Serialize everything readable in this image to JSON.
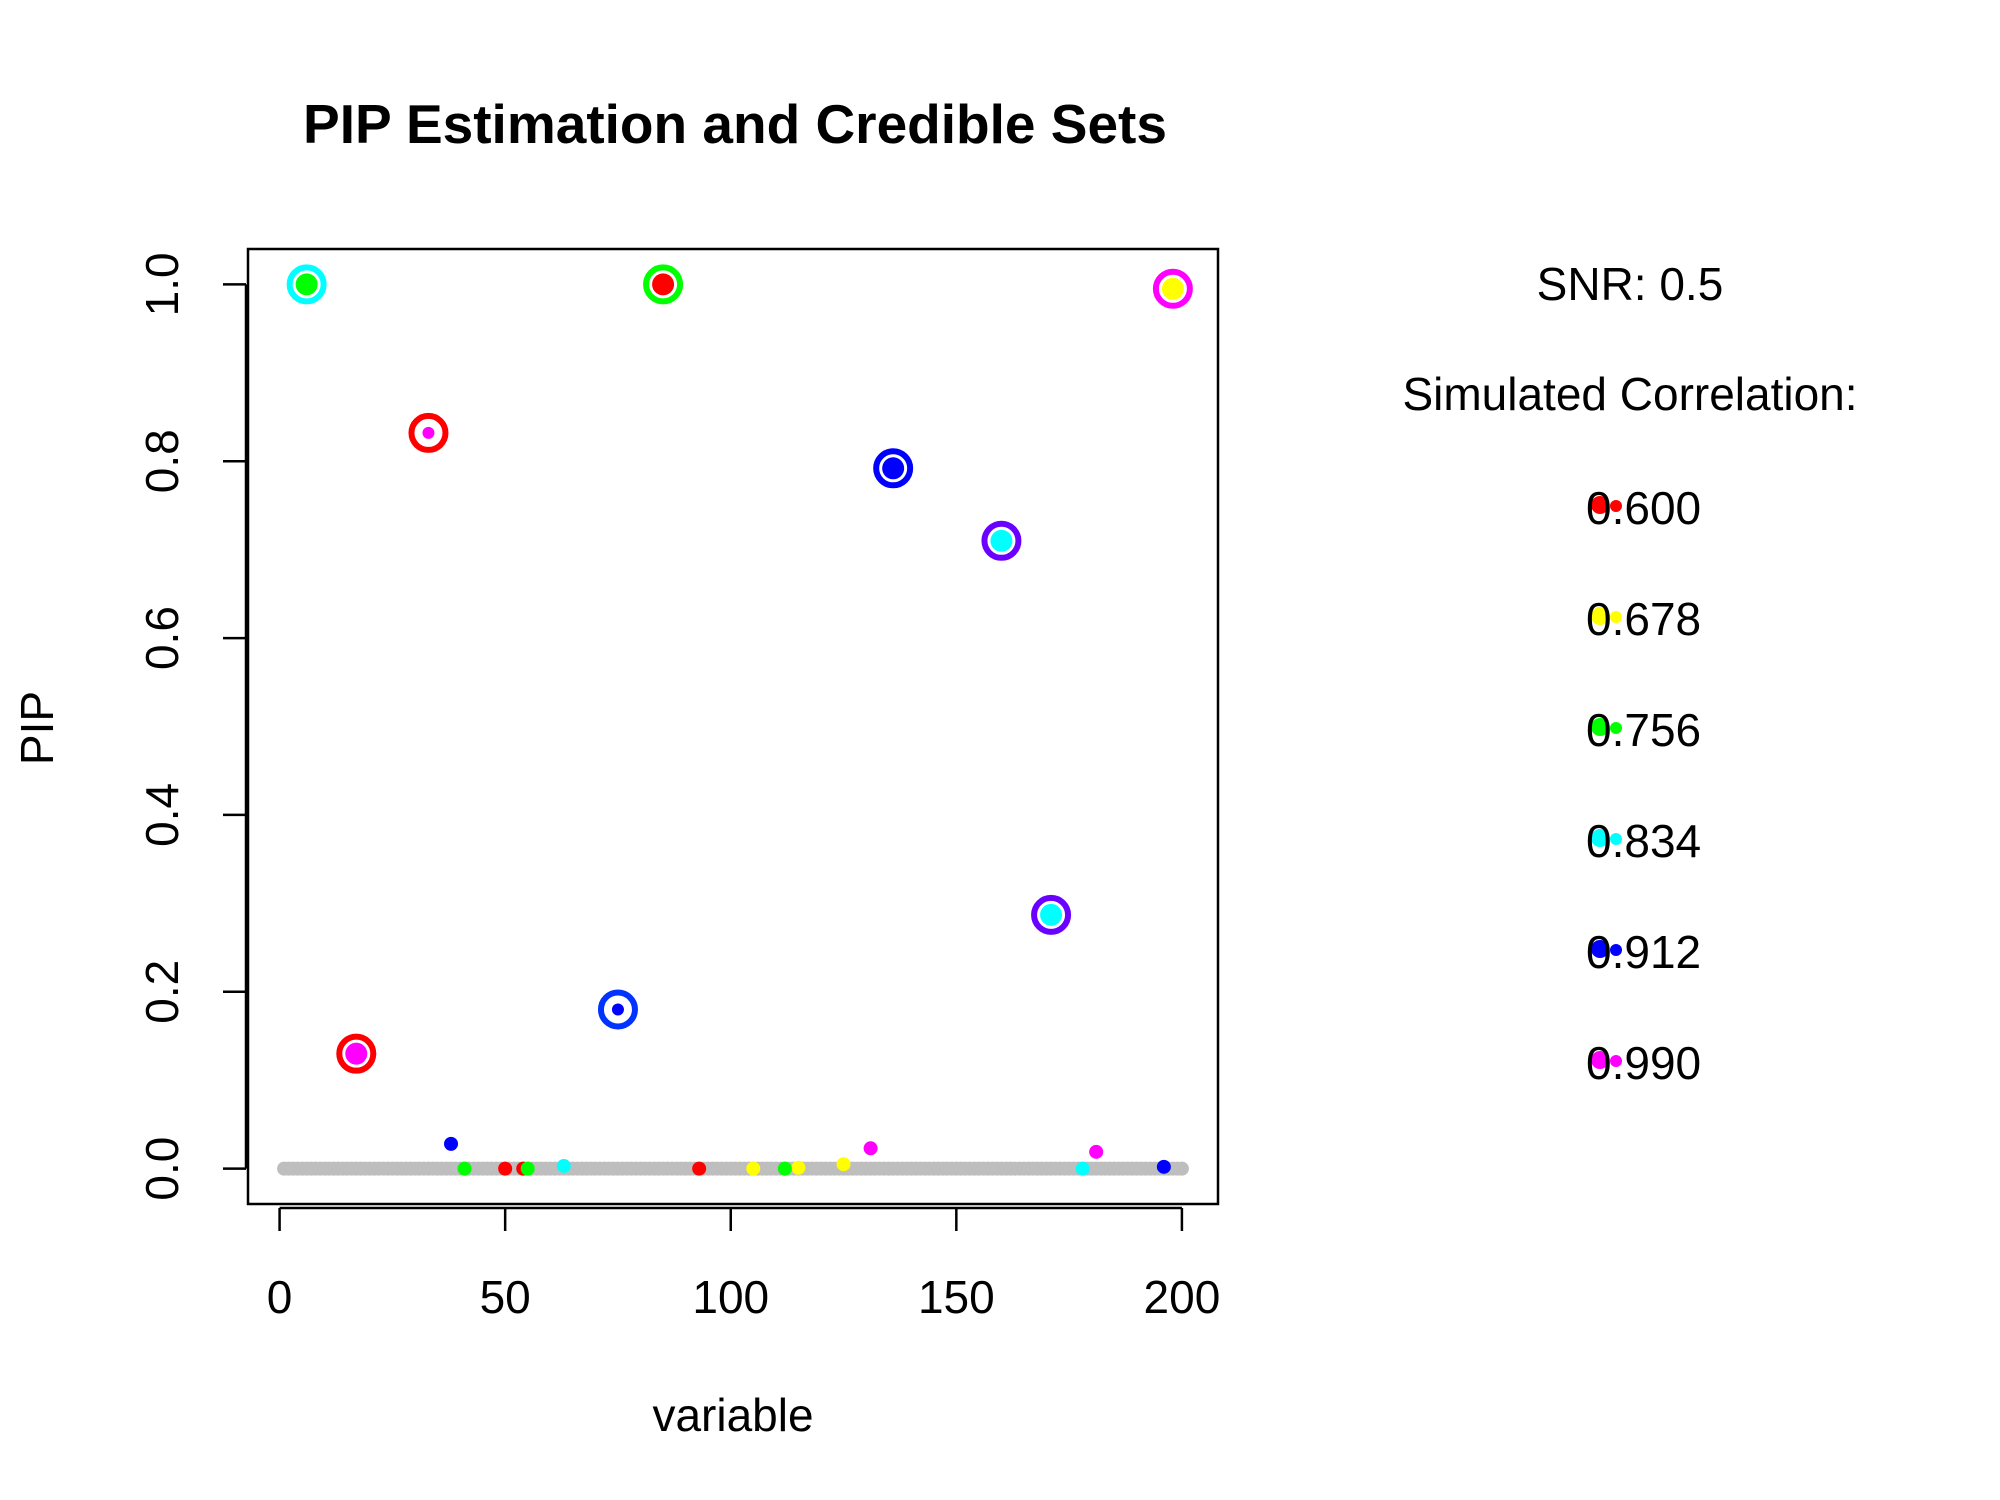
{
  "chart_data": {
    "type": "scatter",
    "title": "PIP Estimation and Credible Sets",
    "xlabel": "variable",
    "ylabel": "PIP",
    "xlim": [
      -7,
      208
    ],
    "ylim": [
      -0.04,
      1.04
    ],
    "x_ticks": [
      0,
      50,
      100,
      150,
      200
    ],
    "x_tick_labels": [
      "0",
      "50",
      "100",
      "150",
      "200"
    ],
    "y_ticks": [
      0.0,
      0.2,
      0.4,
      0.6,
      0.8,
      1.0
    ],
    "y_tick_labels": [
      "0.0",
      "0.2",
      "0.4",
      "0.6",
      "0.8",
      "1.0"
    ],
    "grid": false,
    "background_points": {
      "color": "#bebebe",
      "y": 0,
      "x_range": [
        1,
        200
      ]
    },
    "series": [
      {
        "color": "#ff0000",
        "points": [
          [
            85,
            1.0
          ],
          [
            50,
            0.0
          ],
          [
            54,
            0.0
          ],
          [
            93,
            0.0
          ]
        ]
      },
      {
        "color": "#ffff00",
        "points": [
          [
            198,
            0.995
          ],
          [
            105,
            0.0
          ],
          [
            115,
            0.001
          ],
          [
            125,
            0.005
          ]
        ]
      },
      {
        "color": "#00ff00",
        "points": [
          [
            6,
            1.0
          ],
          [
            41,
            0.0
          ],
          [
            55,
            0.0
          ],
          [
            112,
            0.0
          ]
        ]
      },
      {
        "color": "#00ffff",
        "points": [
          [
            160,
            0.71
          ],
          [
            171,
            0.287
          ],
          [
            63,
            0.003
          ],
          [
            178,
            0.0
          ]
        ]
      },
      {
        "color": "#0000ff",
        "points": [
          [
            136,
            0.792
          ],
          [
            75,
            0.18
          ],
          [
            38,
            0.028
          ],
          [
            196,
            0.002
          ]
        ]
      },
      {
        "color": "#ff00ff",
        "points": [
          [
            17,
            0.13
          ],
          [
            33,
            0.832
          ],
          [
            131,
            0.023
          ],
          [
            181,
            0.019
          ]
        ]
      }
    ],
    "credible_sets": [
      {
        "color": "#00ffff",
        "x": 6,
        "y": 1.0
      },
      {
        "color": "#00ff00",
        "x": 85,
        "y": 1.0
      },
      {
        "color": "#ff00ff",
        "x": 198,
        "y": 0.995
      },
      {
        "color": "#ff0000",
        "x": 33,
        "y": 0.832
      },
      {
        "color": "#0000ff",
        "x": 136,
        "y": 0.792
      },
      {
        "color": "#6a00ff",
        "x": 160,
        "y": 0.71
      },
      {
        "color": "#6a00ff",
        "x": 171,
        "y": 0.287
      },
      {
        "color": "#0033ff",
        "x": 75,
        "y": 0.18
      },
      {
        "color": "#ff0000",
        "x": 17,
        "y": 0.13
      }
    ],
    "side_panel": {
      "snr_text": "SNR: 0.5",
      "legend_title": "Simulated Correlation:",
      "legend_position": "right",
      "legend": [
        {
          "label": "0.600",
          "color": "#ff0000"
        },
        {
          "label": "0.678",
          "color": "#ffff00"
        },
        {
          "label": "0.756",
          "color": "#00ff00"
        },
        {
          "label": "0.834",
          "color": "#00ffff"
        },
        {
          "label": "0.912",
          "color": "#0000ff"
        },
        {
          "label": "0.990",
          "color": "#ff00ff"
        }
      ]
    }
  }
}
